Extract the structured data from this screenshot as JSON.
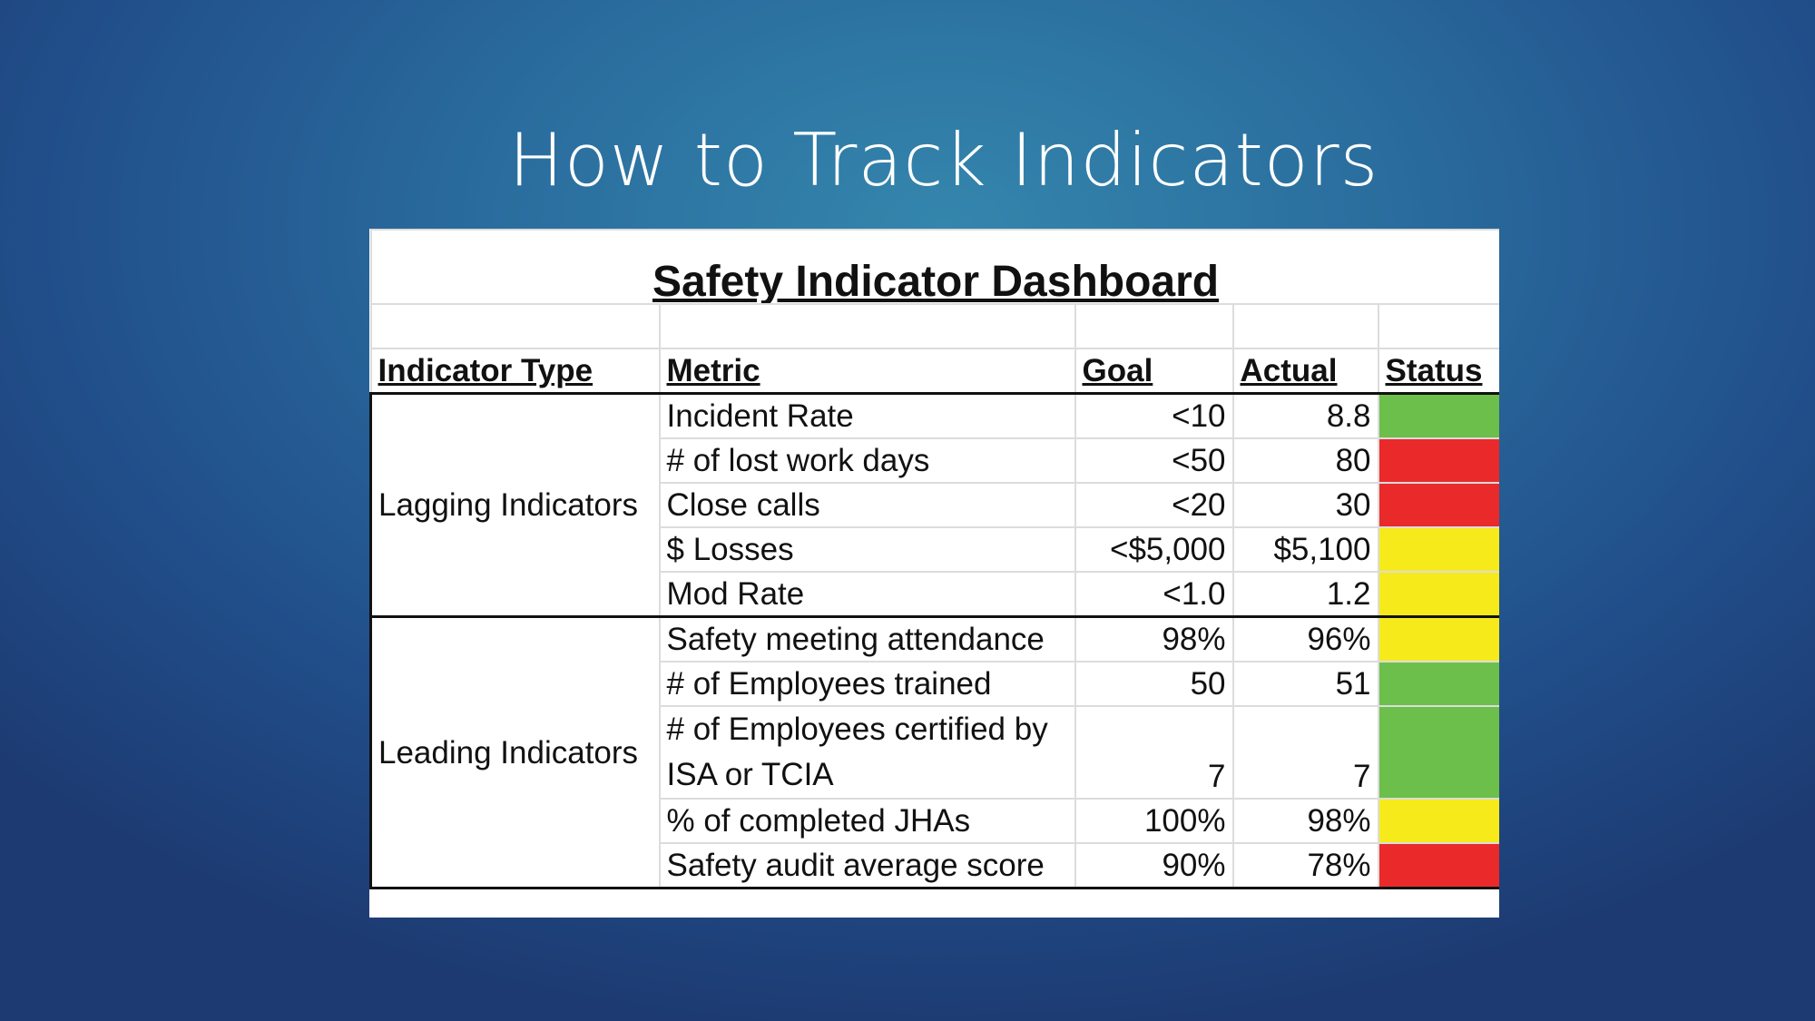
{
  "slide": {
    "title": "How to Track Indicators"
  },
  "dashboard": {
    "title": "Safety Indicator Dashboard",
    "headers": {
      "indicator_type": "Indicator Type",
      "metric": "Metric",
      "goal": "Goal",
      "actual": "Actual",
      "status": "Status"
    },
    "status_colors": {
      "green": "#6cbf4a",
      "red": "#ea2a2a",
      "yellow": "#f7ea1a"
    },
    "groups": [
      {
        "label": "Lagging Indicators",
        "rows": [
          {
            "metric": "Incident Rate",
            "goal": "<10",
            "actual": "8.8",
            "status": "green"
          },
          {
            "metric": "# of lost work days",
            "goal": "<50",
            "actual": "80",
            "status": "red"
          },
          {
            "metric": "Close calls",
            "goal": "<20",
            "actual": "30",
            "status": "red"
          },
          {
            "metric": "$ Losses",
            "goal": "<$5,000",
            "actual": "$5,100",
            "status": "yellow"
          },
          {
            "metric": "Mod Rate",
            "goal": "<1.0",
            "actual": "1.2",
            "status": "yellow"
          }
        ]
      },
      {
        "label": "Leading Indicators",
        "rows": [
          {
            "metric": "Safety meeting attendance",
            "goal": "98%",
            "actual": "96%",
            "status": "yellow"
          },
          {
            "metric": "# of Employees trained",
            "goal": "50",
            "actual": "51",
            "status": "green"
          },
          {
            "metric": "# of Employees certified by ISA or TCIA",
            "goal": "7",
            "actual": "7",
            "status": "green"
          },
          {
            "metric": "% of completed JHAs",
            "goal": "100%",
            "actual": "98%",
            "status": "yellow"
          },
          {
            "metric": "Safety audit average score",
            "goal": "90%",
            "actual": "78%",
            "status": "red"
          }
        ]
      }
    ]
  }
}
